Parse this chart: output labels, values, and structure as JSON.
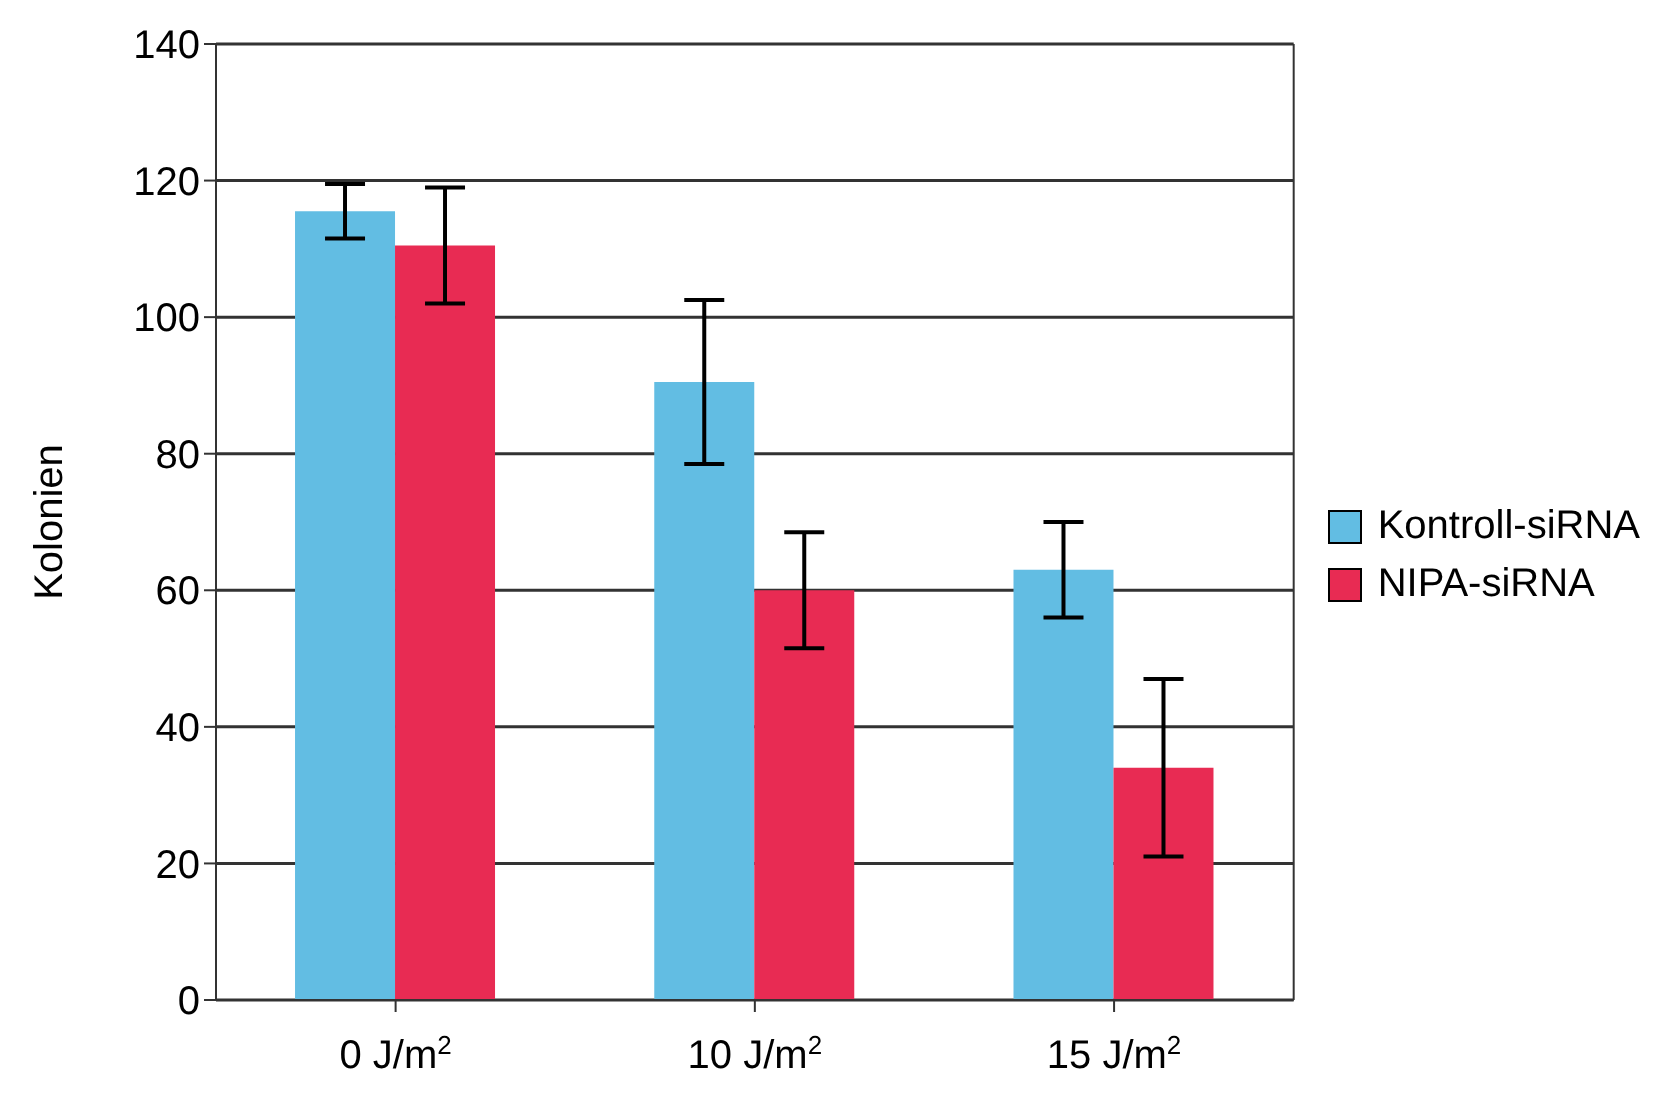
{
  "chart_data": {
    "type": "bar",
    "ylabel": "Kolonien",
    "categories": [
      "0 J/m$^{2}$",
      "10 J/m$^{2}$",
      "15 J/m$^{2}$"
    ],
    "series": [
      {
        "name": "Kontroll-siRNA",
        "color": "#62bde3",
        "values": [
          115.5,
          90.5,
          63
        ],
        "errors": [
          4,
          12,
          7
        ]
      },
      {
        "name": "NIPA-siRNA",
        "color": "#e82b53",
        "values": [
          110.5,
          60,
          34
        ],
        "errors": [
          8.5,
          8.5,
          13
        ]
      }
    ],
    "ylim": [
      0,
      140
    ],
    "yticks": [
      0,
      20,
      40,
      60,
      80,
      100,
      120,
      140
    ],
    "grid": "y",
    "legend": "right"
  }
}
